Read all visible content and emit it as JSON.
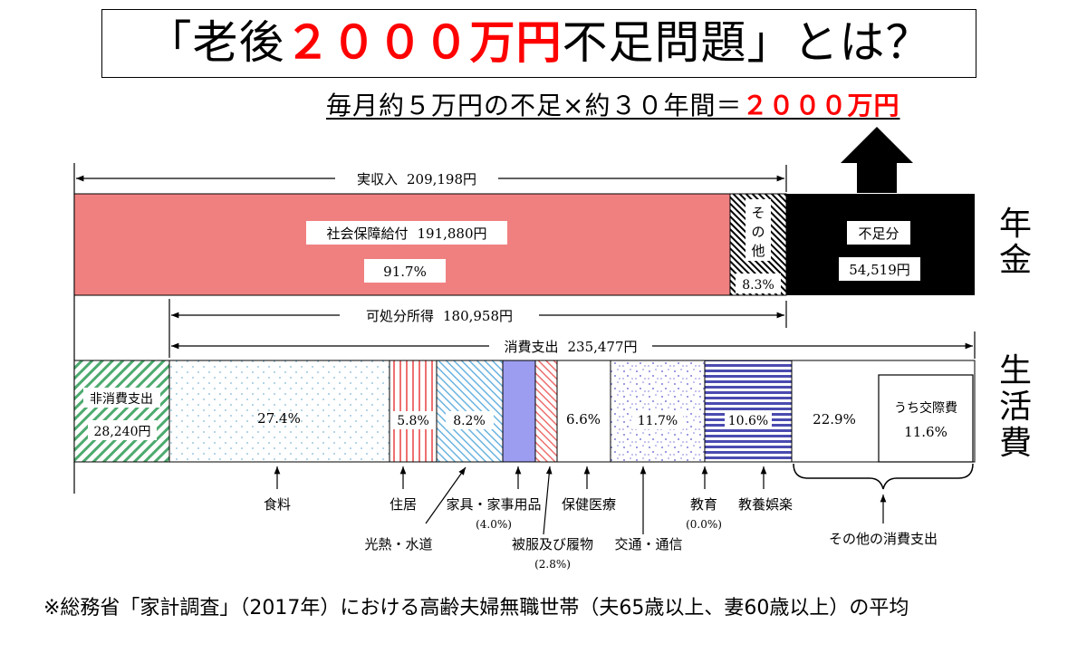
{
  "title": {
    "prefix": "「老後",
    "highlight": "２０００万円",
    "suffix": "不足問題」とは？"
  },
  "formula": {
    "text": "毎月約５万円の不足×約３０年間＝",
    "highlight": "２０００万円"
  },
  "side_labels": {
    "pension": "年金",
    "living": "生活費"
  },
  "footnote": "※総務省「家計調査」（2017年）における高齢夫婦無職世帯（夫65歳以上、妻60歳以上）の平均",
  "colors": {
    "title_red": "#ff0000",
    "social_security": "#f08080",
    "shortfall": "#000000",
    "non_consumption": "#4daa6e",
    "clothing_solid": "#9c9cf0",
    "entertainment": "#4b4bb0"
  },
  "chart_data": {
    "type": "bar",
    "orientation": "horizontal stacked",
    "income_row": {
      "total_label": "実収入",
      "total_value": "209,198円",
      "segments": [
        {
          "label": "社会保障給付",
          "value": "191,880円",
          "percent": "91.7%",
          "percent_value": 91.7
        },
        {
          "label": "その他",
          "percent": "8.3%",
          "percent_value": 8.3
        },
        {
          "label": "不足分",
          "value": "54,519円"
        }
      ]
    },
    "disposable_income": {
      "label": "可処分所得",
      "value": "180,958円"
    },
    "consumption_total": {
      "label": "消費支出",
      "value": "235,477円"
    },
    "expense_row": {
      "non_consumption": {
        "label": "非消費支出",
        "value": "28,240円"
      },
      "segments": [
        {
          "label": "食料",
          "percent": "27.4%",
          "percent_value": 27.4
        },
        {
          "label": "住居",
          "percent": "5.8%",
          "percent_value": 5.8
        },
        {
          "label": "光熱・水道",
          "percent": "8.2%",
          "percent_value": 8.2
        },
        {
          "label": "家具・家事用品",
          "percent": "(4.0%)",
          "percent_value": 4.0
        },
        {
          "label": "被服及び履物",
          "percent": "(2.8%)",
          "percent_value": 2.8
        },
        {
          "label": "保健医療",
          "percent": "6.6%",
          "percent_value": 6.6
        },
        {
          "label": "交通・通信",
          "percent": "11.7%",
          "percent_value": 11.7
        },
        {
          "label": "教育",
          "percent": "(0.0%)",
          "percent_value": 0.0
        },
        {
          "label": "教養娯楽",
          "percent": "10.6%",
          "percent_value": 10.6
        },
        {
          "label": "その他の消費支出",
          "percent": "22.9%",
          "percent_value": 22.9
        }
      ],
      "sub_item": {
        "label": "うち交際費",
        "percent": "11.6%",
        "percent_value": 11.6
      }
    }
  }
}
